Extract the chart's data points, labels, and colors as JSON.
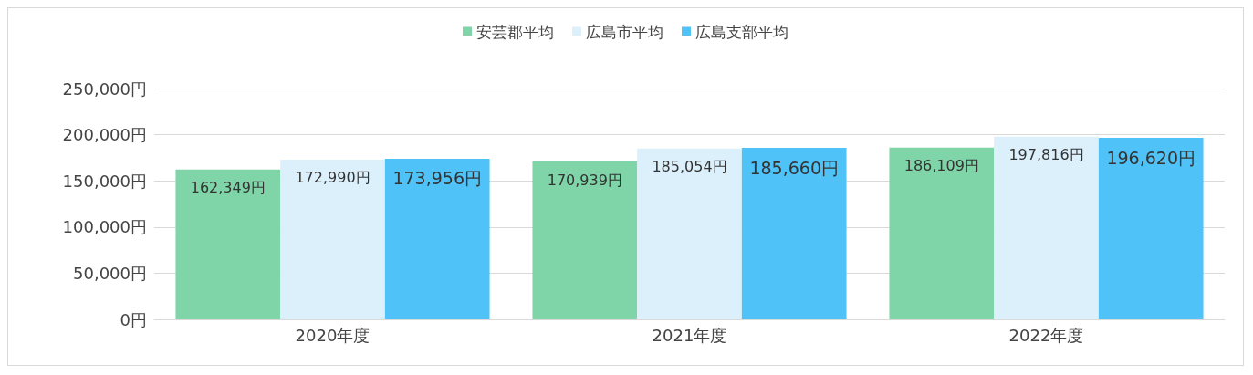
{
  "chart_data": {
    "type": "bar",
    "categories": [
      "2020年度",
      "2021年度",
      "2022年度"
    ],
    "series": [
      {
        "name": "安芸郡平均",
        "color": "#7fd5a8",
        "values": [
          162349,
          170939,
          186109
        ],
        "value_labels": [
          "162,349円",
          "170,939円",
          "186,109円"
        ]
      },
      {
        "name": "広島市平均",
        "color": "#dcf0fb",
        "values": [
          172990,
          185054,
          197816
        ],
        "value_labels": [
          "172,990円",
          "185,054円",
          "197,816円"
        ]
      },
      {
        "name": "広島支部平均",
        "color": "#4fc3f7",
        "values": [
          173956,
          185660,
          196620
        ],
        "value_labels": [
          "173,956円",
          "185,660円",
          "196,620円"
        ]
      }
    ],
    "ylim": [
      0,
      250000
    ],
    "yticks": [
      {
        "value": 0,
        "label": "0円"
      },
      {
        "value": 50000,
        "label": "50,000円"
      },
      {
        "value": 100000,
        "label": "100,000円"
      },
      {
        "value": 150000,
        "label": "150,000円"
      },
      {
        "value": 200000,
        "label": "200,000円"
      },
      {
        "value": 250000,
        "label": "250,000円"
      }
    ],
    "grid": "y",
    "legend": "top"
  }
}
